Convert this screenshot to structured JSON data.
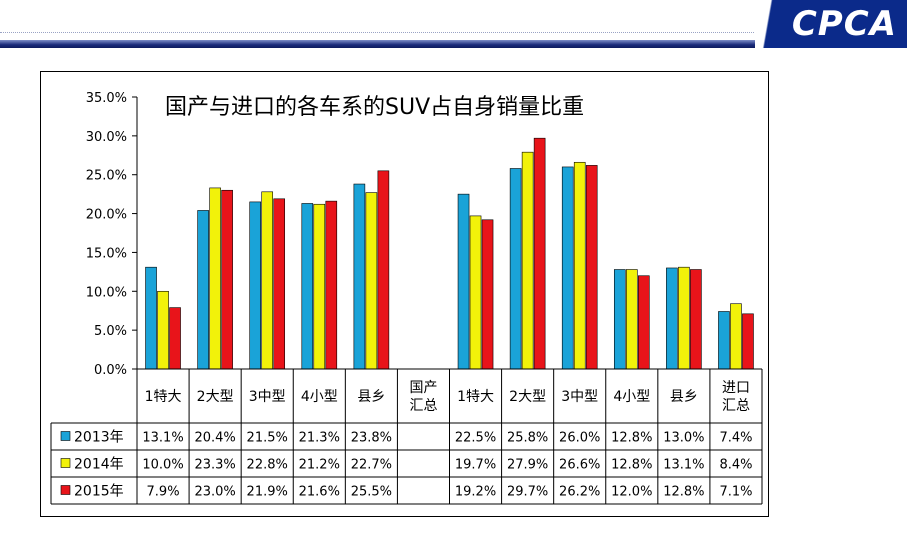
{
  "header": {
    "logo_text": "CPCA"
  },
  "colors": {
    "s2013": "#1aa3d8",
    "s2014": "#f2f20a",
    "s2015": "#e8141a"
  },
  "chart_data": {
    "type": "bar",
    "title": "国产与进口的各车系的SUV占自身销量比重",
    "ylim": [
      0,
      35
    ],
    "yticks": [
      "0.0%",
      "5.0%",
      "10.0%",
      "15.0%",
      "20.0%",
      "25.0%",
      "30.0%",
      "35.0%"
    ],
    "categories": [
      "1特大",
      "2大型",
      "3中型",
      "4小型",
      "县乡",
      "国产\n汇总",
      "1特大",
      "2大型",
      "3中型",
      "4小型",
      "县乡",
      "进口\n汇总"
    ],
    "series": [
      {
        "name": "2013年",
        "values": [
          13.1,
          20.4,
          21.5,
          21.3,
          23.8,
          null,
          22.5,
          25.8,
          26.0,
          12.8,
          13.0,
          7.4
        ],
        "labels": [
          "13.1%",
          "20.4%",
          "21.5%",
          "21.3%",
          "23.8%",
          "",
          "22.5%",
          "25.8%",
          "26.0%",
          "12.8%",
          "13.0%",
          "7.4%"
        ]
      },
      {
        "name": "2014年",
        "values": [
          10.0,
          23.3,
          22.8,
          21.2,
          22.7,
          null,
          19.7,
          27.9,
          26.6,
          12.8,
          13.1,
          8.4
        ],
        "labels": [
          "10.0%",
          "23.3%",
          "22.8%",
          "21.2%",
          "22.7%",
          "",
          "19.7%",
          "27.9%",
          "26.6%",
          "12.8%",
          "13.1%",
          "8.4%"
        ]
      },
      {
        "name": "2015年",
        "values": [
          7.9,
          23.0,
          21.9,
          21.6,
          25.5,
          null,
          19.2,
          29.7,
          26.2,
          12.0,
          12.8,
          7.1
        ],
        "labels": [
          "7.9%",
          "23.0%",
          "21.9%",
          "21.6%",
          "25.5%",
          "",
          "19.2%",
          "29.7%",
          "26.2%",
          "12.0%",
          "12.8%",
          "7.1%"
        ]
      }
    ],
    "grid": false,
    "legend": "data-table-left"
  }
}
